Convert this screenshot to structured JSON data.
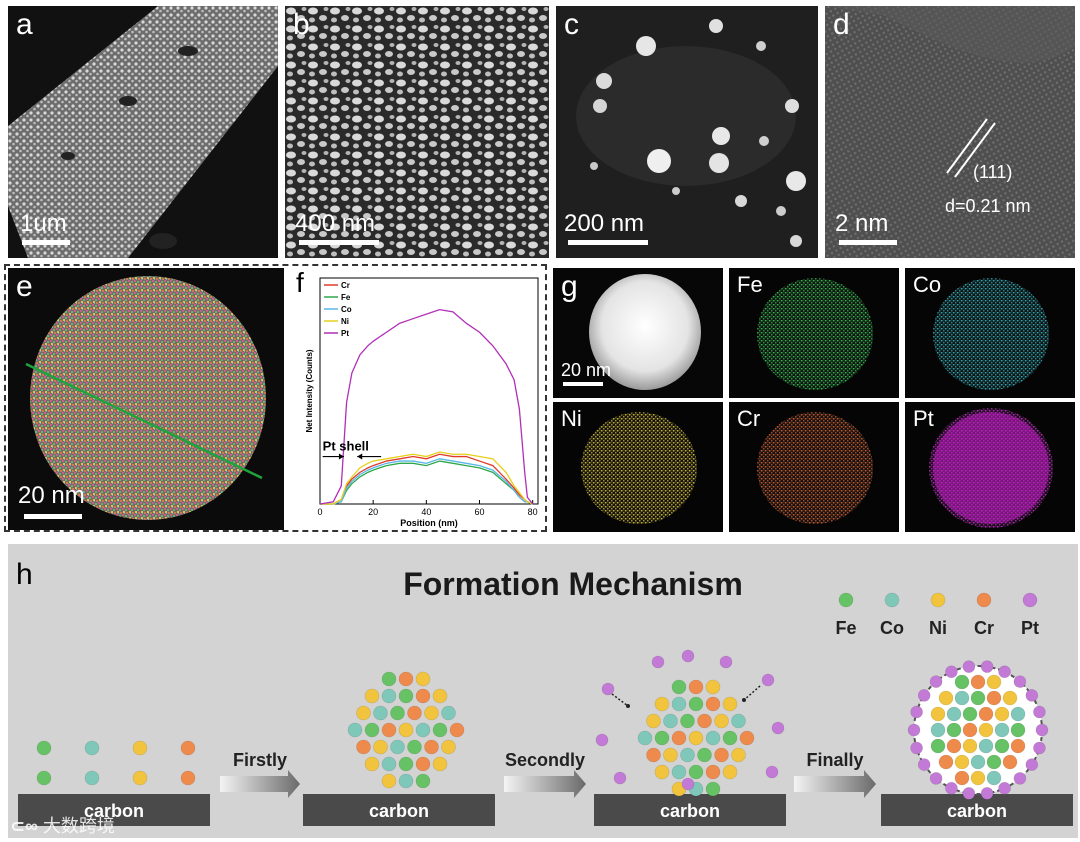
{
  "panels": {
    "a": {
      "label": "a",
      "scale": "1um"
    },
    "b": {
      "label": "b",
      "scale": "400 nm"
    },
    "c": {
      "label": "c",
      "scale": "200 nm"
    },
    "d": {
      "label": "d",
      "scale": "2 nm",
      "plane": "(111)",
      "spacing": "d=0.21 nm"
    },
    "e": {
      "label": "e",
      "scale": "20 nm"
    },
    "f": {
      "label": "f",
      "annotation": "Pt shell"
    },
    "g": {
      "label": "g",
      "scale": "20 nm",
      "maps": [
        {
          "element": "Fe",
          "color": "#2db84a"
        },
        {
          "element": "Co",
          "color": "#2aa6b3"
        },
        {
          "element": "Ni",
          "color": "#c8b22d"
        },
        {
          "element": "Cr",
          "color": "#c7562a"
        },
        {
          "element": "Pt",
          "color": "#c21fc6"
        }
      ]
    },
    "h": {
      "label": "h",
      "title": "Formation Mechanism",
      "legend": [
        {
          "name": "Fe",
          "color": "#66c265"
        },
        {
          "name": "Co",
          "color": "#7fc7b9"
        },
        {
          "name": "Ni",
          "color": "#f2c43d"
        },
        {
          "name": "Cr",
          "color": "#ef8a4d"
        },
        {
          "name": "Pt",
          "color": "#c27ad6"
        }
      ],
      "steps": [
        "Firstly",
        "Secondly",
        "Finally"
      ],
      "substrate": "carbon"
    }
  },
  "watermark": "大数跨境",
  "chart_data": {
    "type": "line",
    "xlabel": "Position (nm)",
    "ylabel": "Net Intensity (Counts)",
    "xlim": [
      0,
      82
    ],
    "ylim": [
      0,
      100
    ],
    "xticks": [
      0,
      20,
      40,
      60,
      80
    ],
    "legend_position": "top-left",
    "x": [
      0,
      5,
      8,
      10,
      12,
      15,
      18,
      20,
      25,
      30,
      35,
      40,
      45,
      50,
      55,
      60,
      65,
      70,
      73,
      75,
      77,
      78,
      80
    ],
    "series": [
      {
        "name": "Cr",
        "color": "#e03a2a",
        "values": [
          0,
          0,
          2,
          8,
          11,
          14,
          16,
          17,
          19,
          20,
          21,
          20,
          22,
          21,
          21,
          19,
          17,
          11,
          7,
          4,
          2,
          1,
          0
        ]
      },
      {
        "name": "Fe",
        "color": "#2ea84a",
        "values": [
          0,
          0,
          1,
          6,
          9,
          12,
          14,
          15,
          17,
          18,
          18,
          17,
          19,
          18,
          17,
          16,
          14,
          9,
          6,
          3,
          1,
          1,
          0
        ]
      },
      {
        "name": "Co",
        "color": "#5ab6e8",
        "values": [
          0,
          0,
          1,
          7,
          10,
          13,
          15,
          16,
          18,
          19,
          19,
          18,
          20,
          19,
          18,
          17,
          15,
          10,
          6,
          3,
          1,
          1,
          0
        ]
      },
      {
        "name": "Ni",
        "color": "#e6cf1a",
        "values": [
          0,
          0,
          2,
          9,
          12,
          16,
          18,
          19,
          20,
          21,
          22,
          21,
          23,
          22,
          22,
          21,
          20,
          14,
          8,
          5,
          2,
          1,
          0
        ]
      },
      {
        "name": "Pt",
        "color": "#b12fb8",
        "values": [
          0,
          1,
          8,
          45,
          58,
          66,
          70,
          72,
          76,
          80,
          82,
          84,
          86,
          85,
          80,
          76,
          70,
          62,
          55,
          42,
          14,
          3,
          0
        ]
      }
    ]
  }
}
